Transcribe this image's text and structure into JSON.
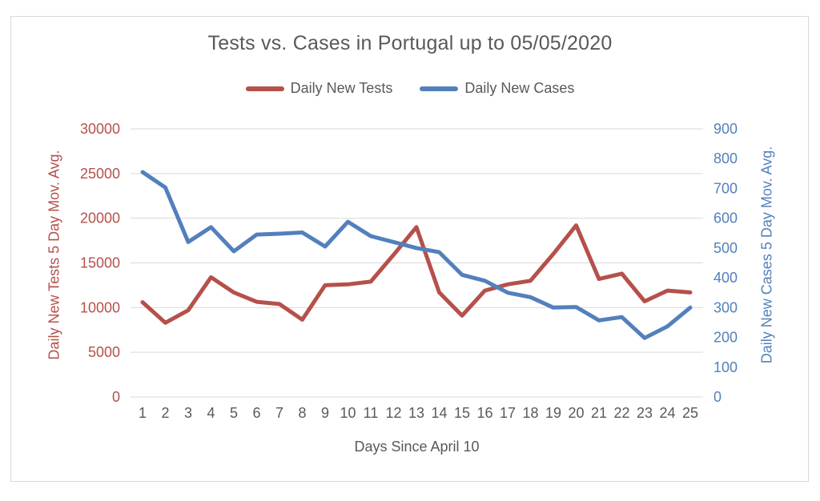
{
  "chart": {
    "title": "Tests vs. Cases in Portugal up to 05/05/2020",
    "colors": {
      "tests_red": "#b5504b",
      "cases_blue": "#5380bc",
      "text_gray": "#595959",
      "gridline": "#d9d9d9",
      "frame_border": "#d9d9d9",
      "background": "#ffffff"
    }
  },
  "chart_data": {
    "type": "line",
    "title": "Tests vs. Cases in Portugal up to 05/05/2020",
    "xlabel": "Days Since April 10",
    "x": [
      1,
      2,
      3,
      4,
      5,
      6,
      7,
      8,
      9,
      10,
      11,
      12,
      13,
      14,
      15,
      16,
      17,
      18,
      19,
      20,
      21,
      22,
      23,
      24,
      25
    ],
    "series": [
      {
        "name": "Daily New Tests",
        "axis": "left",
        "color": "#b5504b",
        "values": [
          10600,
          8300,
          9700,
          13400,
          11700,
          10650,
          10400,
          8650,
          12500,
          12600,
          12900,
          15900,
          19000,
          11700,
          9100,
          11900,
          12600,
          13000,
          16000,
          19200,
          13200,
          13800,
          10700,
          11900,
          11700
        ]
      },
      {
        "name": "Daily New Cases",
        "axis": "right",
        "color": "#5380bc",
        "values": [
          755,
          703,
          520,
          570,
          489,
          545,
          548,
          552,
          505,
          588,
          540,
          520,
          500,
          486,
          410,
          390,
          350,
          335,
          300,
          302,
          257,
          268,
          198,
          237,
          300
        ]
      }
    ],
    "left_axis": {
      "label": "Daily New Tests 5 Day Mov. Avg.",
      "min": 0,
      "max": 30000,
      "ticks": [
        0,
        5000,
        10000,
        15000,
        20000,
        25000,
        30000
      ]
    },
    "right_axis": {
      "label": "Daily New Cases 5 Day Mov. Avg.",
      "min": 0,
      "max": 900,
      "ticks": [
        0,
        100,
        200,
        300,
        400,
        500,
        600,
        700,
        800,
        900
      ]
    },
    "grid": true,
    "legend_position": "top-center"
  }
}
